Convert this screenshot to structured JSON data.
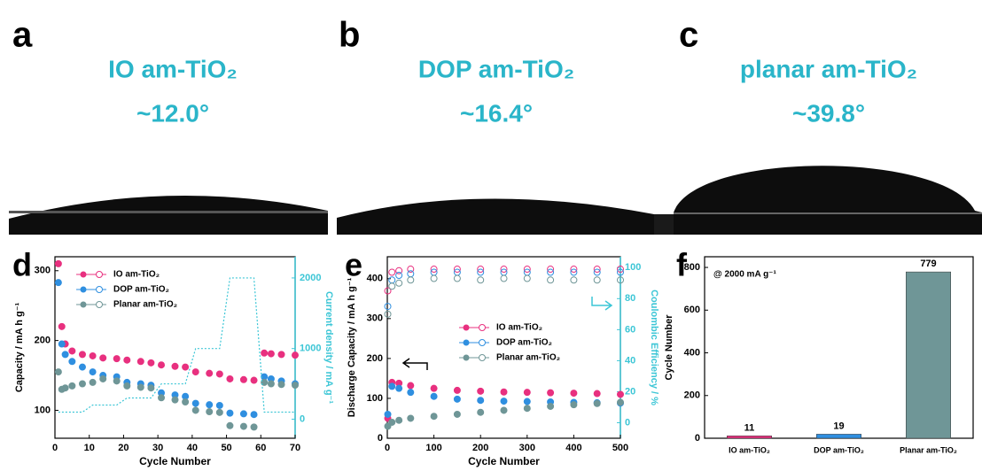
{
  "photos": [
    {
      "label": "a",
      "title": "IO am-TiO₂",
      "angle": "~12.0°"
    },
    {
      "label": "b",
      "title": "DOP am-TiO₂",
      "angle": "~16.4°"
    },
    {
      "label": "c",
      "title": "planar am-TiO₂",
      "angle": "~39.8°"
    }
  ],
  "chart_data": [
    {
      "type": "line",
      "label": "d",
      "xlabel": "Cycle Number",
      "ylabel": "Capacity / mA h g⁻¹",
      "y2label": "Current density / mA g⁻¹",
      "x": [
        1,
        2,
        3,
        5,
        8,
        11,
        14,
        18,
        21,
        25,
        28,
        31,
        35,
        38,
        41,
        45,
        48,
        51,
        55,
        58,
        61,
        63,
        66,
        70
      ],
      "xlim": [
        0,
        70
      ],
      "xticks": [
        0,
        10,
        20,
        30,
        40,
        50,
        60,
        70
      ],
      "ylim": [
        60,
        320
      ],
      "yticks": [
        100,
        200,
        300
      ],
      "y2lim": [
        -270,
        2300
      ],
      "y2ticks": [
        0,
        1000,
        2000
      ],
      "legend": "upper left",
      "series": [
        {
          "name": "IO am-TiO₂",
          "color": "#e8307f",
          "values": [
            310,
            220,
            195,
            185,
            180,
            178,
            175,
            174,
            172,
            170,
            168,
            165,
            163,
            162,
            155,
            153,
            152,
            145,
            144,
            143,
            182,
            181,
            180,
            179
          ]
        },
        {
          "name": "DOP am-TiO₂",
          "color": "#2f8fe0",
          "values": [
            283,
            195,
            180,
            170,
            162,
            155,
            150,
            148,
            140,
            138,
            136,
            125,
            122,
            120,
            110,
            108,
            107,
            96,
            95,
            94,
            148,
            145,
            142,
            138
          ]
        },
        {
          "name": "Planar am-TiO₂",
          "color": "#6f9697",
          "values": [
            155,
            130,
            132,
            135,
            138,
            140,
            145,
            142,
            135,
            133,
            132,
            118,
            115,
            112,
            100,
            98,
            97,
            78,
            77,
            76,
            140,
            138,
            137,
            136
          ]
        },
        {
          "color": "#3cc6d6",
          "axis": "y2",
          "style": "dashed",
          "values": [
            100,
            100,
            100,
            100,
            100,
            200,
            200,
            200,
            300,
            300,
            300,
            500,
            500,
            500,
            1000,
            1000,
            1000,
            2000,
            2000,
            2000,
            100,
            100,
            100,
            100
          ]
        }
      ]
    },
    {
      "type": "line",
      "label": "e",
      "xlabel": "Cycle Number",
      "ylabel": "Discharge Capacity / mA h g⁻¹",
      "y2label": "Coulombic Efficiency / %",
      "x": [
        1,
        10,
        25,
        50,
        100,
        150,
        200,
        250,
        300,
        350,
        400,
        450,
        500
      ],
      "xlim": [
        0,
        500
      ],
      "xticks": [
        0,
        100,
        200,
        300,
        400,
        500
      ],
      "ylim": [
        0,
        455
      ],
      "yticks": [
        0,
        100,
        200,
        300,
        400
      ],
      "y2lim": [
        -10,
        107
      ],
      "y2ticks": [
        0,
        20,
        40,
        60,
        80,
        100
      ],
      "legend": "center",
      "series": [
        {
          "name": "IO am-TiO₂",
          "color": "#e8307f",
          "values": [
            50,
            140,
            138,
            132,
            125,
            120,
            118,
            116,
            115,
            114,
            113,
            112,
            110
          ]
        },
        {
          "name": "DOP am-TiO₂",
          "color": "#2f8fe0",
          "values": [
            60,
            130,
            125,
            115,
            105,
            98,
            95,
            93,
            92,
            91,
            90,
            89,
            88
          ]
        },
        {
          "name": "Planar am-TiO₂",
          "color": "#6f9697",
          "values": [
            30,
            40,
            45,
            50,
            55,
            60,
            65,
            70,
            75,
            80,
            84,
            87,
            90
          ]
        },
        {
          "color": "#e8307f",
          "axis": "y2",
          "style": "open",
          "values": [
            85,
            97,
            98,
            99,
            99,
            99,
            99,
            99,
            99,
            99,
            99,
            99,
            99
          ]
        },
        {
          "color": "#2f8fe0",
          "axis": "y2",
          "style": "open",
          "values": [
            75,
            92,
            95,
            96,
            97,
            97,
            97,
            97,
            97,
            97,
            97,
            97,
            97
          ]
        },
        {
          "color": "#6f9697",
          "axis": "y2",
          "style": "open",
          "values": [
            70,
            88,
            90,
            92,
            93,
            93,
            92,
            93,
            93,
            92,
            92,
            92,
            92
          ]
        }
      ]
    },
    {
      "type": "bar",
      "label": "f",
      "ylabel": "Cycle Number",
      "annotation": "@ 2000 mA g⁻¹",
      "categories": [
        "IO am-TiO₂",
        "DOP am-TiO₂",
        "Planar am-TiO₂"
      ],
      "values": [
        11,
        19,
        779
      ],
      "colors": [
        "#e8307f",
        "#2f8fe0",
        "#6f9697"
      ],
      "ylim": [
        0,
        850
      ],
      "yticks": [
        0,
        200,
        400,
        600,
        800
      ]
    }
  ]
}
